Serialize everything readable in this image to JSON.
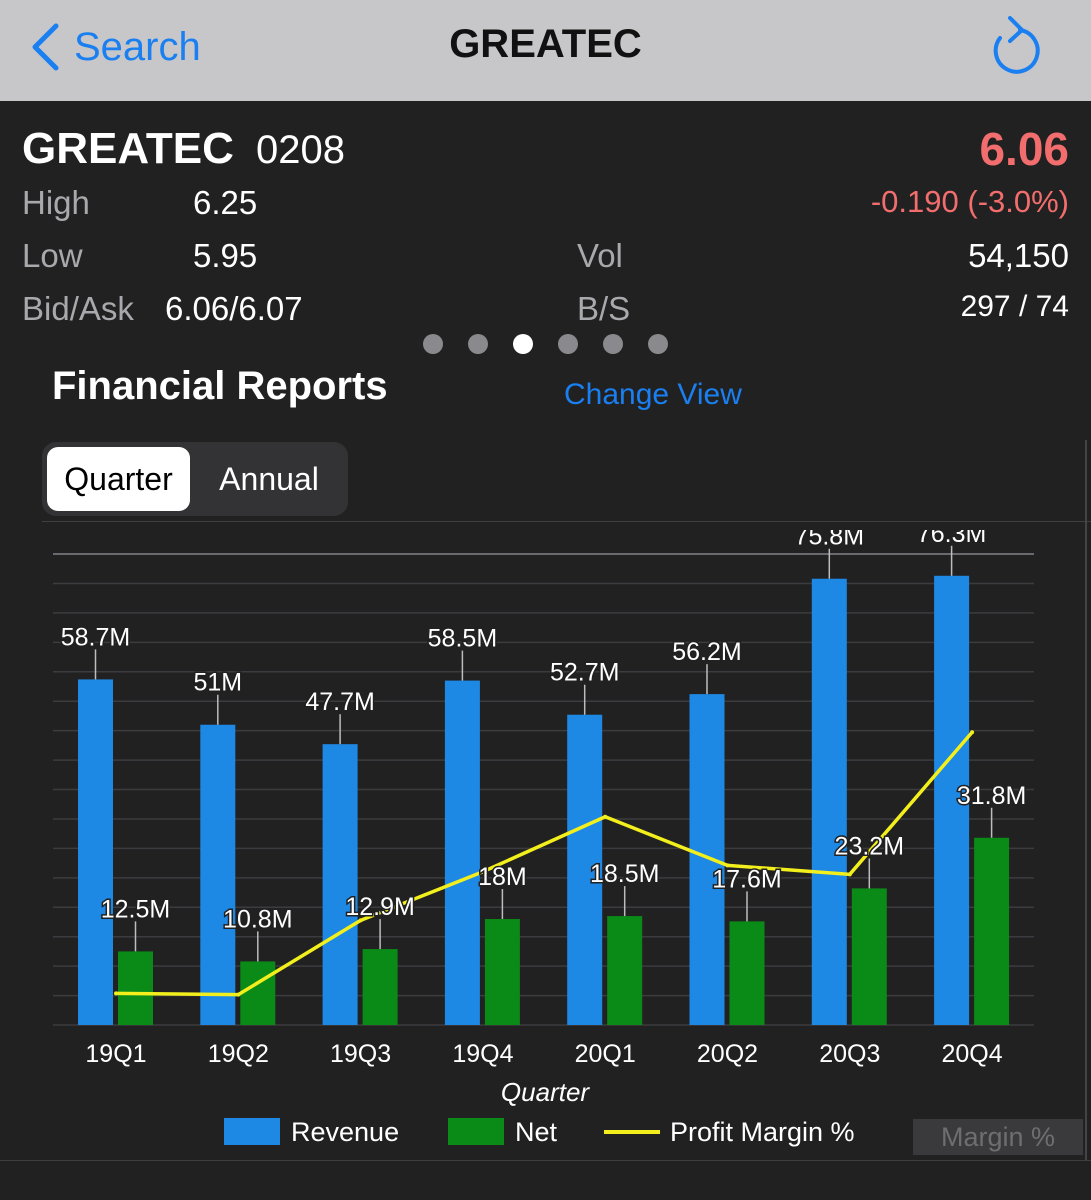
{
  "nav": {
    "back_label": "Search",
    "title": "GREATEC"
  },
  "quote": {
    "name": "GREATEC",
    "code": "0208",
    "price": "6.06",
    "change": "-0.190 (-3.0%)",
    "high_label": "High",
    "high": "6.25",
    "low_label": "Low",
    "low": "5.95",
    "bidask_label": "Bid/Ask",
    "bidask": "6.06/6.07",
    "vol_label": "Vol",
    "vol": "54,150",
    "bs_label": "B/S",
    "bs": "297 / 74"
  },
  "pager": {
    "count": 6,
    "active_index": 2
  },
  "reports": {
    "title": "Financial Reports",
    "change_view": "Change View",
    "tabs": [
      "Quarter",
      "Annual"
    ],
    "active_tab": "Quarter"
  },
  "chart_data": {
    "type": "bar",
    "categories": [
      "19Q1",
      "19Q2",
      "19Q3",
      "19Q4",
      "20Q1",
      "20Q2",
      "20Q3",
      "20Q4"
    ],
    "xlabel": "Quarter",
    "series": [
      {
        "name": "Revenue",
        "kind": "bar",
        "color": "#1e88e5",
        "values": [
          58.7,
          51,
          47.7,
          58.5,
          52.7,
          56.2,
          75.8,
          76.3
        ],
        "labels": [
          "58.7M",
          "51M",
          "47.7M",
          "58.5M",
          "52.7M",
          "56.2M",
          "75.8M",
          "76.3M"
        ]
      },
      {
        "name": "Net",
        "kind": "bar",
        "color": "#0a8a17",
        "values": [
          12.5,
          10.8,
          12.9,
          18,
          18.5,
          17.6,
          23.2,
          31.8
        ],
        "labels": [
          "12.5M",
          "10.8M",
          "12.9M",
          "18M",
          "18.5M",
          "17.6M",
          "23.2M",
          "31.8M"
        ]
      },
      {
        "name": "Profit Margin %",
        "kind": "line",
        "color": "#f2ef1d",
        "values": [
          21.3,
          21.2,
          27,
          30.8,
          35.1,
          31.3,
          30.6,
          41.7
        ]
      }
    ],
    "ylim": [
      0,
      80
    ],
    "grid": true,
    "legend": "bottom"
  },
  "badge": {
    "margin_label": "Margin %"
  }
}
